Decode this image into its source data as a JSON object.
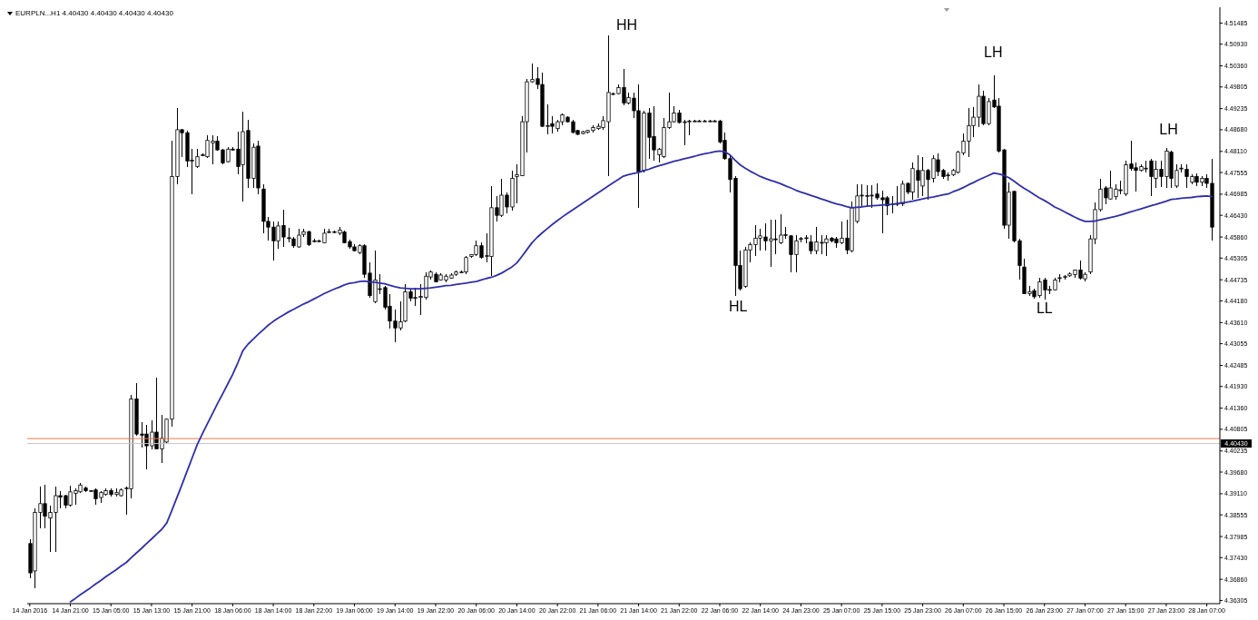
{
  "chart_data": {
    "type": "candlestick",
    "title": "EURPLN...H1 4.40430 4.40430 4.40430 4.40430",
    "categories": [
      "14 Jan 2016",
      null,
      null,
      null,
      null,
      null,
      null,
      null,
      "14 Jan 21:00",
      null,
      null,
      null,
      null,
      null,
      null,
      null,
      "15 Jan 05:00",
      null,
      null,
      null,
      null,
      null,
      null,
      null,
      "15 Jan 13:00",
      null,
      null,
      null,
      null,
      null,
      null,
      null,
      "15 Jan 21:00",
      null,
      null,
      null,
      null,
      null,
      null,
      null,
      "18 Jan 06:00",
      null,
      null,
      null,
      null,
      null,
      null,
      null,
      "18 Jan 14:00",
      null,
      null,
      null,
      null,
      null,
      null,
      null,
      "18 Jan 22:00",
      null,
      null,
      null,
      null,
      null,
      null,
      null,
      "19 Jan 06:00",
      null,
      null,
      null,
      null,
      null,
      null,
      null,
      "19 Jan 14:00",
      null,
      null,
      null,
      null,
      null,
      null,
      null,
      "19 Jan 22:00",
      null,
      null,
      null,
      null,
      null,
      null,
      null,
      "20 Jan 06:00",
      null,
      null,
      null,
      null,
      null,
      null,
      null,
      "20 Jan 14:00",
      null,
      null,
      null,
      null,
      null,
      null,
      null,
      "20 Jan 22:00",
      null,
      null,
      null,
      null,
      null,
      null,
      null,
      "21 Jan 06:00",
      null,
      null,
      null,
      null,
      null,
      null,
      null,
      "21 Jan 14:00",
      null,
      null,
      null,
      null,
      null,
      null,
      null,
      "21 Jan 22:00",
      null,
      null,
      null,
      null,
      null,
      null,
      null,
      "22 Jan 06:00",
      null,
      null,
      null,
      null,
      null,
      null,
      null,
      "22 Jan 14:00",
      null,
      null,
      null,
      null,
      null,
      null,
      null,
      "24 Jan 23:00",
      null,
      null,
      null,
      null,
      null,
      null,
      null,
      "25 Jan 07:00",
      null,
      null,
      null,
      null,
      null,
      null,
      null,
      "25 Jan 15:00",
      null,
      null,
      null,
      null,
      null,
      null,
      null,
      "25 Jan 23:00",
      null,
      null,
      null,
      null,
      null,
      null,
      null,
      "26 Jan 07:00",
      null,
      null,
      null,
      null,
      null,
      null,
      null,
      "26 Jan 15:00",
      null,
      null,
      null,
      null,
      null,
      null,
      null,
      "26 Jan 23:00",
      null,
      null,
      null,
      null,
      null,
      null,
      null,
      "27 Jan 07:00",
      null,
      null,
      null,
      null,
      null,
      null,
      null,
      "27 Jan 15:00",
      null,
      null,
      null,
      null,
      null,
      null,
      null,
      "27 Jan 23:00",
      null,
      null,
      null,
      null,
      null,
      null,
      null,
      "28 Jan 07:00",
      null
    ],
    "ohlc": [
      [
        4.378,
        4.3791,
        4.3688,
        4.3703
      ],
      [
        4.3708,
        4.3873,
        4.3662,
        4.3862
      ],
      [
        4.3862,
        4.3929,
        4.3821,
        4.3885
      ],
      [
        4.3885,
        4.3934,
        4.3821,
        4.3852
      ],
      [
        4.3847,
        4.388,
        4.3759,
        4.3862
      ],
      [
        4.3862,
        4.3929,
        4.3759,
        4.3906
      ],
      [
        4.3906,
        4.3919,
        4.3873,
        4.3902
      ],
      [
        4.3906,
        4.3909,
        4.3873,
        4.3881
      ],
      [
        4.3881,
        4.3932,
        4.3878,
        4.3916
      ],
      [
        4.3912,
        4.3924,
        4.3883,
        4.3919
      ],
      [
        4.3916,
        4.3939,
        4.3914,
        4.3934
      ],
      [
        4.3926,
        4.3929,
        4.3916,
        4.3919
      ],
      [
        4.3919,
        4.3921,
        4.3917,
        4.3919
      ],
      [
        4.3921,
        4.3924,
        4.3881,
        4.3898
      ],
      [
        4.3901,
        4.3919,
        4.3888,
        4.3914
      ],
      [
        4.3909,
        4.3924,
        4.3906,
        4.3919
      ],
      [
        4.3919,
        4.3924,
        4.3903,
        4.3909
      ],
      [
        4.3909,
        4.3924,
        4.3903,
        4.3914
      ],
      [
        4.3906,
        4.3926,
        4.3903,
        4.3921
      ],
      [
        4.3924,
        4.3929,
        4.3857,
        4.3926
      ],
      [
        4.3924,
        4.417,
        4.3898,
        4.416
      ],
      [
        4.416,
        4.4201,
        4.4063,
        4.4068
      ],
      [
        4.4068,
        4.4099,
        4.4032,
        4.4065
      ],
      [
        4.4068,
        4.4093,
        4.3975,
        4.4037
      ],
      [
        4.4037,
        4.4104,
        4.4027,
        4.4073
      ],
      [
        4.4073,
        4.4217,
        4.4027,
        4.4029
      ],
      [
        4.4029,
        4.4119,
        4.3991,
        4.4057
      ],
      [
        4.4047,
        4.4109,
        4.4045,
        4.4107
      ],
      [
        4.4107,
        4.4838,
        4.4088,
        4.4745
      ],
      [
        4.4745,
        4.4925,
        4.4725,
        4.4868
      ],
      [
        4.4868,
        4.487,
        4.4797,
        4.486
      ],
      [
        4.486,
        4.4866,
        4.4771,
        4.4786
      ],
      [
        4.4788,
        4.4817,
        4.4699,
        4.4788
      ],
      [
        4.4771,
        4.4817,
        4.4768,
        4.4797
      ],
      [
        4.4802,
        4.4805,
        4.4799,
        4.4802
      ],
      [
        4.4797,
        4.4853,
        4.4794,
        4.484
      ],
      [
        4.4833,
        4.4853,
        4.4778,
        4.4838
      ],
      [
        4.4838,
        4.485,
        4.4812,
        4.4815
      ],
      [
        4.4815,
        4.4817,
        4.4778,
        4.4781
      ],
      [
        4.4784,
        4.4822,
        4.4781,
        4.4817
      ],
      [
        4.4817,
        4.4822,
        4.4812,
        4.4815
      ],
      [
        4.4817,
        4.4863,
        4.4751,
        4.4771
      ],
      [
        4.4776,
        4.4915,
        4.4679,
        4.4863
      ],
      [
        4.4866,
        4.4894,
        4.4715,
        4.474
      ],
      [
        4.474,
        4.4833,
        4.4715,
        4.4822
      ],
      [
        4.4825,
        4.4838,
        4.4699,
        4.4715
      ],
      [
        4.4712,
        4.4725,
        4.4596,
        4.4627
      ],
      [
        4.4627,
        4.4638,
        4.4576,
        4.4612
      ],
      [
        4.4612,
        4.4627,
        4.4525,
        4.4576
      ],
      [
        4.4576,
        4.4627,
        4.4555,
        4.4615
      ],
      [
        4.4616,
        4.4658,
        4.456,
        4.4586
      ],
      [
        4.4584,
        4.461,
        4.4571,
        4.4583
      ],
      [
        4.4581,
        4.4586,
        4.4558,
        4.4563
      ],
      [
        4.456,
        4.4607,
        4.4558,
        4.4591
      ],
      [
        4.4593,
        4.4607,
        4.4586,
        4.46
      ],
      [
        4.46,
        4.4602,
        4.4563,
        4.4566
      ],
      [
        4.4576,
        4.4581,
        4.4571,
        4.4574
      ],
      [
        4.4574,
        4.4579,
        4.4571,
        4.4576
      ],
      [
        4.4571,
        4.4607,
        4.4569,
        4.4596
      ],
      [
        4.4598,
        4.4607,
        4.4596,
        4.46
      ],
      [
        4.46,
        4.4604,
        4.4596,
        4.46
      ],
      [
        4.4596,
        4.4612,
        4.4591,
        4.4604
      ],
      [
        4.4599,
        4.4602,
        4.4569,
        4.4571
      ],
      [
        4.4574,
        4.4578,
        4.4555,
        4.456
      ],
      [
        4.456,
        4.4566,
        4.4548,
        4.455
      ],
      [
        4.4545,
        4.4566,
        4.454,
        4.4563
      ],
      [
        4.4563,
        4.4566,
        4.4478,
        4.4488
      ],
      [
        4.4491,
        4.4519,
        4.4427,
        4.4432
      ],
      [
        4.4416,
        4.455,
        4.4411,
        4.4473
      ],
      [
        4.445,
        4.4488,
        4.4437,
        4.445
      ],
      [
        4.4453,
        4.4458,
        4.4396,
        4.4401
      ],
      [
        4.4404,
        4.4437,
        4.4345,
        4.4365
      ],
      [
        4.4365,
        4.4396,
        4.4309,
        4.4347
      ],
      [
        4.4347,
        4.4416,
        4.434,
        4.4363
      ],
      [
        4.4365,
        4.4463,
        4.4363,
        4.4442
      ],
      [
        4.4442,
        4.4447,
        4.4416,
        4.4425
      ],
      [
        4.4427,
        4.4453,
        4.4406,
        4.4427
      ],
      [
        4.4427,
        4.4463,
        4.4381,
        4.443
      ],
      [
        4.4427,
        4.4494,
        4.4422,
        4.4483
      ],
      [
        4.4481,
        4.4497,
        4.4473,
        4.4494
      ],
      [
        4.4488,
        4.4494,
        4.4466,
        4.4468
      ],
      [
        4.4473,
        4.4491,
        4.4471,
        4.4486
      ],
      [
        4.4473,
        4.4488,
        4.4466,
        4.4483
      ],
      [
        4.4478,
        4.4491,
        4.4476,
        4.4486
      ],
      [
        4.4488,
        4.4499,
        4.4483,
        4.4494
      ],
      [
        4.4494,
        4.4497,
        4.4491,
        4.4494
      ],
      [
        4.4494,
        4.4535,
        4.4488,
        4.4532
      ],
      [
        4.4535,
        4.4542,
        4.4532,
        4.454
      ],
      [
        4.454,
        4.4576,
        4.4535,
        4.4563
      ],
      [
        4.4563,
        4.4573,
        4.453,
        4.4532
      ],
      [
        4.4535,
        4.4596,
        4.4519,
        4.4537
      ],
      [
        4.4535,
        4.472,
        4.4483,
        4.4663
      ],
      [
        4.4663,
        4.4694,
        4.4627,
        4.4643
      ],
      [
        4.4643,
        4.474,
        4.4638,
        4.4696
      ],
      [
        4.4696,
        4.4704,
        4.4648,
        4.4665
      ],
      [
        4.4665,
        4.4761,
        4.4655,
        4.474
      ],
      [
        4.4745,
        4.4776,
        4.4674,
        4.475
      ],
      [
        4.4747,
        4.4904,
        4.4745,
        4.4889
      ],
      [
        4.4889,
        4.5002,
        4.4809,
        4.4994
      ],
      [
        4.4994,
        4.5043,
        4.4992,
        4.5
      ],
      [
        4.5002,
        4.5033,
        4.4976,
        4.4987
      ],
      [
        4.4987,
        4.5017,
        4.4874,
        4.4877
      ],
      [
        4.4877,
        4.4935,
        4.4856,
        4.4879
      ],
      [
        4.4884,
        4.4904,
        4.4858,
        4.4877
      ],
      [
        4.4871,
        4.4894,
        4.4863,
        4.4889
      ],
      [
        4.4889,
        4.491,
        4.4879,
        4.4907
      ],
      [
        4.4901,
        4.4904,
        4.4886,
        4.4889
      ],
      [
        4.4889,
        4.4894,
        4.4858,
        4.4861
      ],
      [
        4.4866,
        4.4868,
        4.4854,
        4.4856
      ],
      [
        4.4858,
        4.4865,
        4.4856,
        4.4863
      ],
      [
        4.4861,
        4.4868,
        4.4858,
        4.4866
      ],
      [
        4.4866,
        4.4879,
        4.486,
        4.4874
      ],
      [
        4.4871,
        4.4884,
        4.4868,
        4.4877
      ],
      [
        4.4874,
        4.4904,
        4.4868,
        4.4892
      ],
      [
        4.4889,
        4.5115,
        4.4745,
        4.4966
      ],
      [
        4.4963,
        4.4966,
        4.4959,
        4.4963
      ],
      [
        4.4963,
        4.4987,
        4.4961,
        4.4979
      ],
      [
        4.4979,
        4.5028,
        4.4932,
        4.4938
      ],
      [
        4.4938,
        4.4966,
        4.4935,
        4.4953
      ],
      [
        4.4951,
        4.4966,
        4.4899,
        4.4918
      ],
      [
        4.4918,
        4.4987,
        4.4663,
        4.4758
      ],
      [
        4.4761,
        4.4918,
        4.4756,
        4.4912
      ],
      [
        4.4912,
        4.4925,
        4.4792,
        4.4848
      ],
      [
        4.485,
        4.493,
        4.4786,
        4.4815
      ],
      [
        4.4802,
        4.4819,
        4.4781,
        4.4817
      ],
      [
        4.4797,
        4.4899,
        4.4795,
        4.4874
      ],
      [
        4.4874,
        4.4966,
        4.4871,
        4.4889
      ],
      [
        4.4889,
        4.493,
        4.4887,
        4.4912
      ],
      [
        4.4912,
        4.492,
        4.4884,
        4.4887
      ],
      [
        4.4889,
        4.4894,
        4.4827,
        4.4889
      ],
      [
        4.4891,
        4.4894,
        4.4853,
        4.4891
      ],
      [
        4.4891,
        4.4894,
        4.4889,
        4.4891
      ],
      [
        4.4891,
        4.4894,
        4.4889,
        4.4891
      ],
      [
        4.4891,
        4.4894,
        4.4889,
        4.4891
      ],
      [
        4.4891,
        4.4894,
        4.4889,
        4.4891
      ],
      [
        4.4891,
        4.4894,
        4.4889,
        4.4891
      ],
      [
        4.4891,
        4.4893,
        4.4833,
        4.4836
      ],
      [
        4.484,
        4.486,
        4.4788,
        4.4792
      ],
      [
        4.4792,
        4.4802,
        4.4704,
        4.4737
      ],
      [
        4.474,
        4.4745,
        4.4432,
        4.4511
      ],
      [
        4.4511,
        4.455,
        4.4446,
        4.445
      ],
      [
        4.4456,
        4.456,
        4.4453,
        4.4552
      ],
      [
        4.4552,
        4.4571,
        4.4519,
        4.4566
      ],
      [
        4.4566,
        4.4617,
        4.4535,
        4.4583
      ],
      [
        4.4583,
        4.4607,
        4.455,
        4.4589
      ],
      [
        4.4586,
        4.4622,
        4.455,
        4.4576
      ],
      [
        4.4576,
        4.4632,
        4.4507,
        4.4581
      ],
      [
        4.4581,
        4.4632,
        4.454,
        4.458
      ],
      [
        4.4571,
        4.4645,
        4.4566,
        4.4591
      ],
      [
        4.4591,
        4.4612,
        4.4581,
        4.4592
      ],
      [
        4.4589,
        4.4591,
        4.4494,
        4.454
      ],
      [
        4.454,
        4.4591,
        4.4494,
        4.4576
      ],
      [
        4.4581,
        4.4586,
        4.4573,
        4.4582
      ],
      [
        4.4583,
        4.4591,
        4.4569,
        4.4584
      ],
      [
        4.4573,
        4.4591,
        4.4542,
        4.455
      ],
      [
        4.455,
        4.4612,
        4.454,
        4.4573
      ],
      [
        4.4571,
        4.4591,
        4.454,
        4.4572
      ],
      [
        4.4571,
        4.4591,
        4.4535,
        4.4581
      ],
      [
        4.4583,
        4.4587,
        4.4571,
        4.4576
      ],
      [
        4.4581,
        4.4586,
        4.4558,
        4.4571
      ],
      [
        4.4571,
        4.4627,
        4.4566,
        4.4583
      ],
      [
        4.4583,
        4.4632,
        4.454,
        4.4552
      ],
      [
        4.455,
        4.4679,
        4.4545,
        4.4663
      ],
      [
        4.4627,
        4.4725,
        4.4622,
        4.4694
      ],
      [
        4.4694,
        4.4725,
        4.4668,
        4.4696
      ],
      [
        4.4694,
        4.4723,
        4.4668,
        4.4695
      ],
      [
        4.4694,
        4.4723,
        4.4663,
        4.4696
      ],
      [
        4.4699,
        4.4727,
        4.4684,
        4.4689
      ],
      [
        4.4689,
        4.4709,
        4.4596,
        4.4684
      ],
      [
        4.4689,
        4.4694,
        4.4643,
        4.4668
      ],
      [
        4.4671,
        4.4694,
        4.4648,
        4.4673
      ],
      [
        4.4673,
        4.472,
        4.4668,
        4.4674
      ],
      [
        4.4673,
        4.4735,
        4.4668,
        4.4725
      ],
      [
        4.4727,
        4.473,
        4.4699,
        4.4704
      ],
      [
        4.4704,
        4.4781,
        4.4684,
        4.4766
      ],
      [
        4.4761,
        4.4802,
        4.4689,
        4.4735
      ],
      [
        4.472,
        4.4797,
        4.4694,
        4.4761
      ],
      [
        4.4761,
        4.4766,
        4.4684,
        4.4737
      ],
      [
        4.474,
        4.4802,
        4.473,
        4.4792
      ],
      [
        4.4789,
        4.4805,
        4.4745,
        4.4758
      ],
      [
        4.4761,
        4.4766,
        4.474,
        4.4745
      ],
      [
        4.4748,
        4.4756,
        4.4735,
        4.4749
      ],
      [
        4.475,
        4.4766,
        4.4745,
        4.4761
      ],
      [
        4.4756,
        4.4812,
        4.4753,
        4.4809
      ],
      [
        4.4807,
        4.4858,
        4.4802,
        4.4838
      ],
      [
        4.4838,
        4.4925,
        4.4797,
        4.4879
      ],
      [
        4.4879,
        4.4928,
        4.4848,
        4.4901
      ],
      [
        4.4901,
        4.4987,
        4.4874,
        4.4956
      ],
      [
        4.4956,
        4.4971,
        4.4879,
        4.4884
      ],
      [
        4.4884,
        4.4951,
        4.4879,
        4.4942
      ],
      [
        4.4946,
        4.5012,
        4.4925,
        4.4928
      ],
      [
        4.493,
        4.4951,
        4.4807,
        4.4812
      ],
      [
        4.4815,
        4.4817,
        4.4607,
        4.4617
      ],
      [
        4.4617,
        4.473,
        4.4581,
        4.4704
      ],
      [
        4.4706,
        4.4709,
        4.4573,
        4.4576
      ],
      [
        4.4576,
        4.4581,
        4.4473,
        4.4511
      ],
      [
        4.4507,
        4.453,
        4.4435,
        4.4437
      ],
      [
        4.4437,
        4.4458,
        4.4432,
        4.4442
      ],
      [
        4.4445,
        4.445,
        4.4425,
        4.4429
      ],
      [
        4.4432,
        4.4478,
        4.4427,
        4.4468
      ],
      [
        4.4473,
        4.4478,
        4.4422,
        4.4447
      ],
      [
        4.4447,
        4.4458,
        4.4437,
        4.4448
      ],
      [
        4.4447,
        4.4478,
        4.4445,
        4.4473
      ],
      [
        4.4478,
        4.4488,
        4.4468,
        4.4479
      ],
      [
        4.4481,
        4.4487,
        4.4474,
        4.4482
      ],
      [
        4.4484,
        4.4493,
        4.4481,
        4.4489
      ],
      [
        4.4487,
        4.4501,
        4.4478,
        4.4499
      ],
      [
        4.4499,
        4.4525,
        4.4473,
        4.4478
      ],
      [
        4.4476,
        4.4494,
        4.447,
        4.4488
      ],
      [
        4.4494,
        4.4591,
        4.4488,
        4.4581
      ],
      [
        4.4581,
        4.4676,
        4.4566,
        4.4658
      ],
      [
        4.4658,
        4.474,
        4.4653,
        4.4712
      ],
      [
        4.4715,
        4.472,
        4.4673,
        4.4689
      ],
      [
        4.4686,
        4.4761,
        4.4684,
        4.4715
      ],
      [
        4.4692,
        4.4725,
        4.4684,
        4.4712
      ],
      [
        4.4709,
        4.4735,
        4.4699,
        4.471
      ],
      [
        4.4699,
        4.4786,
        4.4694,
        4.4776
      ],
      [
        4.4778,
        4.484,
        4.4761,
        4.4766
      ],
      [
        4.4768,
        4.4781,
        4.4706,
        4.4761
      ],
      [
        4.4761,
        4.4776,
        4.4758,
        4.4771
      ],
      [
        4.4766,
        4.4786,
        4.4756,
        4.4767
      ],
      [
        4.4786,
        4.4792,
        4.4694,
        4.4745
      ],
      [
        4.474,
        4.4786,
        4.4715,
        4.4764
      ],
      [
        4.4764,
        4.4786,
        4.4717,
        4.4745
      ],
      [
        4.4745,
        4.4819,
        4.4715,
        4.4812
      ],
      [
        4.4809,
        4.4812,
        4.4715,
        4.474
      ],
      [
        4.472,
        4.4776,
        4.4715,
        4.4761
      ],
      [
        4.4766,
        4.4776,
        4.4756,
        4.4767
      ],
      [
        4.4764,
        4.4776,
        4.4715,
        4.4745
      ],
      [
        4.473,
        4.475,
        4.4725,
        4.4745
      ],
      [
        4.4745,
        4.4753,
        4.472,
        4.473
      ],
      [
        4.473,
        4.4747,
        4.472,
        4.474
      ],
      [
        4.474,
        4.475,
        4.4715,
        4.4727
      ],
      [
        4.4727,
        4.4792,
        4.4576,
        4.4612
      ]
    ],
    "series": [
      {
        "type": "line",
        "color": "#2e2eab",
        "values": [
          null,
          null,
          null,
          null,
          null,
          null,
          null,
          null,
          4.3627,
          4.3636,
          4.3646,
          4.3655,
          4.3664,
          4.3674,
          4.3683,
          4.3693,
          4.3702,
          4.3711,
          4.3721,
          4.373,
          4.3743,
          4.3755,
          4.3767,
          4.378,
          4.3792,
          4.3805,
          4.3817,
          4.3834,
          4.3867,
          4.3901,
          4.3935,
          4.397,
          4.4005,
          4.404,
          4.4068,
          4.4095,
          4.4121,
          4.4148,
          4.4173,
          4.4199,
          4.4225,
          4.4255,
          4.4287,
          4.4304,
          4.4317,
          4.433,
          4.4342,
          4.4354,
          4.4364,
          4.4373,
          4.4381,
          4.4389,
          4.4396,
          4.4403,
          4.441,
          4.4416,
          4.4423,
          4.443,
          4.4437,
          4.4443,
          4.4449,
          4.4454,
          4.446,
          4.4464,
          4.4466,
          4.4469,
          4.447,
          4.4468,
          4.4467,
          4.4465,
          4.4463,
          4.4459,
          4.4455,
          4.4452,
          4.4451,
          4.445,
          4.445,
          4.445,
          4.4451,
          4.4452,
          4.4454,
          4.4456,
          4.4458,
          4.4459,
          4.4461,
          4.4463,
          4.4465,
          4.4467,
          4.4469,
          4.4473,
          4.4477,
          4.448,
          4.4485,
          4.4491,
          4.4499,
          4.4507,
          4.4518,
          4.4535,
          4.4553,
          4.4571,
          4.4585,
          4.4597,
          4.4608,
          4.4619,
          4.4629,
          4.4639,
          4.4648,
          4.4657,
          4.4666,
          4.4675,
          4.4684,
          4.4693,
          4.4702,
          4.4711,
          4.472,
          4.4729,
          4.4737,
          4.4746,
          4.475,
          4.4753,
          4.4756,
          4.476,
          4.4764,
          4.4769,
          4.4773,
          4.4777,
          4.4781,
          4.4785,
          4.4788,
          4.4792,
          4.4795,
          4.4798,
          4.4802,
          4.4805,
          4.4807,
          4.481,
          4.4812,
          4.481,
          4.4802,
          4.4788,
          4.4776,
          4.4767,
          4.4759,
          4.4752,
          4.4745,
          4.474,
          4.4735,
          4.4731,
          4.4726,
          4.472,
          4.4715,
          4.4709,
          4.4704,
          4.47,
          4.4695,
          4.4691,
          4.4686,
          4.4682,
          4.4677,
          4.4673,
          4.467,
          4.4666,
          4.4663,
          4.4664,
          4.4665,
          4.4667,
          4.4668,
          4.4669,
          4.467,
          4.4671,
          4.4672,
          4.4674,
          4.4676,
          4.4678,
          4.468,
          4.4683,
          4.4686,
          4.4689,
          4.4691,
          4.4694,
          4.4697,
          4.4699,
          4.4705,
          4.471,
          4.4716,
          4.4723,
          4.4729,
          4.4736,
          4.4742,
          4.4748,
          4.4754,
          4.4752,
          4.4748,
          4.4742,
          4.4733,
          4.4723,
          4.4714,
          4.4706,
          4.4697,
          4.4689,
          4.4682,
          4.4674,
          4.4665,
          4.4659,
          4.4652,
          4.4645,
          4.4638,
          4.4632,
          4.4627,
          4.4627,
          4.4628,
          4.4631,
          4.4634,
          4.4637,
          4.464,
          4.4644,
          4.4648,
          4.4652,
          4.4656,
          4.466,
          4.4664,
          4.4668,
          4.4672,
          4.4676,
          4.468,
          4.4685,
          4.4686,
          4.4688,
          4.4689,
          4.469,
          4.4692,
          4.4693,
          4.4694,
          4.4692
        ]
      }
    ],
    "ylim": [
      4.3622,
      4.519
    ],
    "yticks": [
      4.51485,
      {
        "value": 4.5093,
        "label": "4.50930"
      },
      {
        "value": 4.5036,
        "label": "4.50360"
      },
      4.49805,
      4.49235,
      {
        "value": 4.4868,
        "label": "4.48680"
      },
      {
        "value": 4.4811,
        "label": "4.48110"
      },
      4.47555,
      4.46985,
      {
        "value": 4.4643,
        "label": "4.46430"
      },
      {
        "value": 4.4586,
        "label": "4.45860"
      },
      4.45305,
      4.44735,
      {
        "value": 4.4418,
        "label": "4.44180"
      },
      {
        "value": 4.4361,
        "label": "4.43610"
      },
      4.43055,
      4.42485,
      {
        "value": 4.4193,
        "label": "4.41930"
      },
      {
        "value": 4.4136,
        "label": "4.41360"
      },
      4.40805,
      4.40235,
      {
        "value": 4.3968,
        "label": "4.39680"
      },
      {
        "value": 4.3911,
        "label": "4.39110"
      },
      4.38555,
      4.37985,
      {
        "value": 4.3743,
        "label": "4.37430"
      },
      {
        "value": 4.3686,
        "label": "4.36860"
      },
      4.36305
    ],
    "ref_lines": [
      {
        "axis": "y",
        "value": 4.4056,
        "color": "#e87b48"
      },
      {
        "axis": "y",
        "value": 4.4043,
        "label": "4.40430",
        "color": "#c4c4c4"
      }
    ],
    "annotations": [
      "HH",
      "HL",
      "LH",
      "LL",
      "LH"
    ]
  }
}
